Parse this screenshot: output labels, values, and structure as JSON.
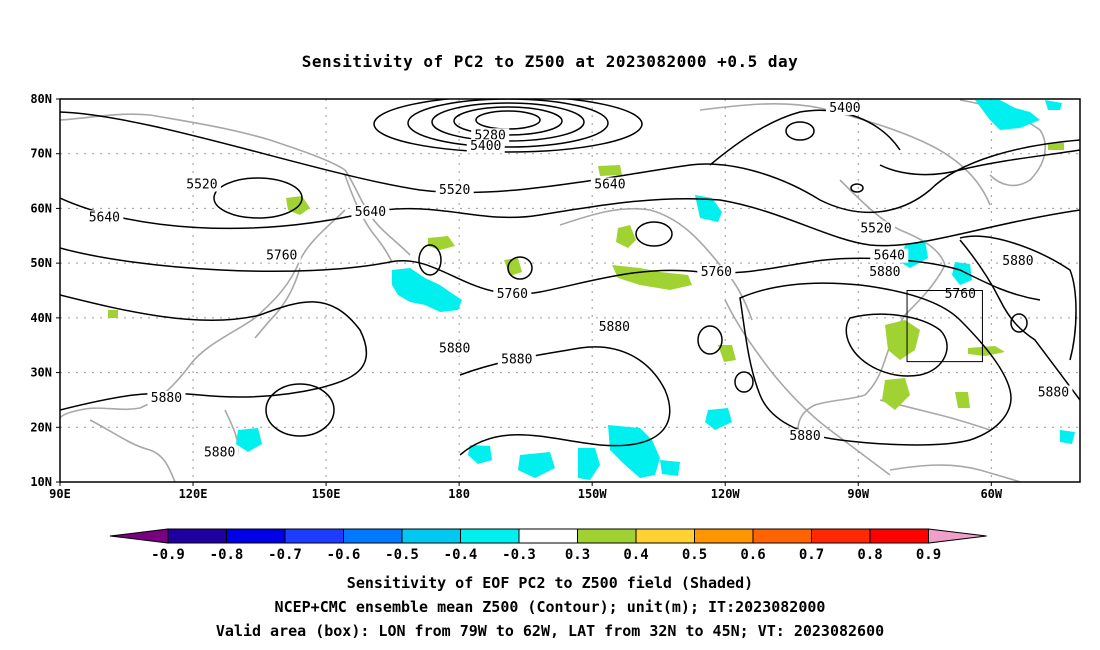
{
  "title": "Sensitivity of PC2 to Z500 at 2023082000 +0.5 day",
  "captions": {
    "line1": "Sensitivity of EOF PC2 to Z500 field (Shaded)",
    "line2": "NCEP+CMC ensemble mean Z500 (Contour); unit(m); IT:2023082000",
    "line3": "Valid area (box): LON from 79W to 62W, LAT from 32N to 45N; VT: 2023082600"
  },
  "map": {
    "lon_range": [
      90,
      320
    ],
    "lat_range": [
      10,
      80
    ],
    "lat_ticks": [
      {
        "value": 10,
        "label": "10N"
      },
      {
        "value": 20,
        "label": "20N"
      },
      {
        "value": 30,
        "label": "30N"
      },
      {
        "value": 40,
        "label": "40N"
      },
      {
        "value": 50,
        "label": "50N"
      },
      {
        "value": 60,
        "label": "60N"
      },
      {
        "value": 70,
        "label": "70N"
      },
      {
        "value": 80,
        "label": "80N"
      }
    ],
    "lon_ticks": [
      {
        "value": 90,
        "label": "90E"
      },
      {
        "value": 120,
        "label": "120E"
      },
      {
        "value": 150,
        "label": "150E"
      },
      {
        "value": 180,
        "label": "180"
      },
      {
        "value": 210,
        "label": "150W"
      },
      {
        "value": 240,
        "label": "120W"
      },
      {
        "value": 270,
        "label": "90W"
      },
      {
        "value": 300,
        "label": "60W"
      }
    ],
    "valid_box": {
      "lon_west": 281,
      "lon_east": 298,
      "lat_south": 32,
      "lat_north": 45
    },
    "contour_labels": [
      {
        "text": "5280",
        "lon": 187,
        "lat": 73
      },
      {
        "text": "5400",
        "lon": 186,
        "lat": 71
      },
      {
        "text": "5400",
        "lon": 267,
        "lat": 78
      },
      {
        "text": "5520",
        "lon": 122,
        "lat": 64
      },
      {
        "text": "5520",
        "lon": 179,
        "lat": 63
      },
      {
        "text": "5520",
        "lon": 274,
        "lat": 56
      },
      {
        "text": "5640",
        "lon": 100,
        "lat": 58
      },
      {
        "text": "5640",
        "lon": 160,
        "lat": 59
      },
      {
        "text": "5640",
        "lon": 214,
        "lat": 64
      },
      {
        "text": "5640",
        "lon": 277,
        "lat": 51
      },
      {
        "text": "5760",
        "lon": 140,
        "lat": 51
      },
      {
        "text": "5760",
        "lon": 192,
        "lat": 44
      },
      {
        "text": "5760",
        "lon": 238,
        "lat": 48
      },
      {
        "text": "5760",
        "lon": 293,
        "lat": 44
      },
      {
        "text": "5880",
        "lon": 126,
        "lat": 15
      },
      {
        "text": "5880",
        "lon": 179,
        "lat": 34
      },
      {
        "text": "5880",
        "lon": 193,
        "lat": 32
      },
      {
        "text": "5880",
        "lon": 215,
        "lat": 38
      },
      {
        "text": "5880",
        "lon": 258,
        "lat": 18
      },
      {
        "text": "5880",
        "lon": 276,
        "lat": 48
      },
      {
        "text": "5880",
        "lon": 306,
        "lat": 50
      },
      {
        "text": "5880",
        "lon": 314,
        "lat": 26
      },
      {
        "text": "5880",
        "lon": 114,
        "lat": 25
      }
    ]
  },
  "colorbar": {
    "colors": [
      "#7a0082",
      "#1e00a0",
      "#0000e6",
      "#1e3cff",
      "#0078ff",
      "#00c8f0",
      "#00f0f0",
      "#ffffff",
      "#a0d232",
      "#ffd232",
      "#ff9600",
      "#ff6400",
      "#ff2800",
      "#ff0000",
      "#f0a0c8"
    ],
    "labels": [
      "-0.9",
      "-0.8",
      "-0.7",
      "-0.6",
      "-0.5",
      "-0.4",
      "-0.3",
      "0.3",
      "0.4",
      "0.5",
      "0.6",
      "0.7",
      "0.8",
      "0.9"
    ]
  }
}
